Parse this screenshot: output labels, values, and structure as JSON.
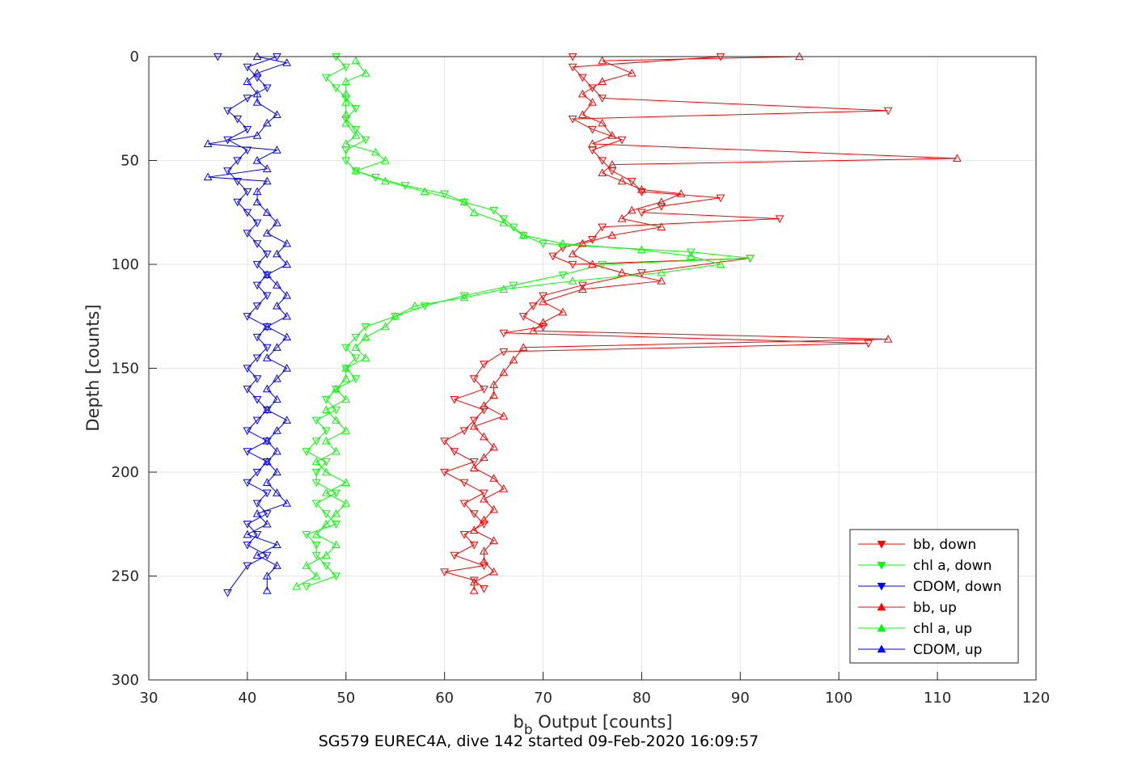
{
  "chart_data": {
    "type": "line",
    "title": "SG579 EUREC4A, dive 142 started 09-Feb-2020 16:09:57",
    "xlabel_main": "b",
    "xlabel_sub": "b",
    "xlabel_rest": " Output [counts]",
    "ylabel": "Depth [counts]",
    "xlim": [
      30,
      120
    ],
    "ylim": [
      0,
      300
    ],
    "y_reversed": true,
    "grid": true,
    "legend_position": "bottom-right",
    "xticks": [
      "30",
      "40",
      "50",
      "60",
      "70",
      "80",
      "90",
      "100",
      "110",
      "120"
    ],
    "yticks": [
      "0",
      "50",
      "100",
      "150",
      "200",
      "250",
      "300"
    ],
    "profiles": [
      {
        "name": "bb, down",
        "color": "#ff0000",
        "marker": "down",
        "points": [
          [
            73,
            0
          ],
          [
            88,
            0
          ],
          [
            73,
            5
          ],
          [
            74,
            10
          ],
          [
            75,
            15
          ],
          [
            76,
            20
          ],
          [
            105,
            26
          ],
          [
            73,
            30
          ],
          [
            75,
            35
          ],
          [
            78,
            40
          ],
          [
            75,
            45
          ],
          [
            76,
            50
          ],
          [
            77,
            55
          ],
          [
            79,
            60
          ],
          [
            80,
            65
          ],
          [
            88,
            68
          ],
          [
            82,
            72
          ],
          [
            80,
            75
          ],
          [
            94,
            78
          ],
          [
            76,
            82
          ],
          [
            75,
            88
          ],
          [
            72,
            92
          ],
          [
            71,
            96
          ],
          [
            73,
            100
          ],
          [
            91,
            97
          ],
          [
            80,
            104
          ],
          [
            74,
            110
          ],
          [
            70,
            115
          ],
          [
            69,
            120
          ],
          [
            68,
            125
          ],
          [
            70,
            130
          ],
          [
            66,
            133
          ],
          [
            103,
            138
          ],
          [
            66,
            142
          ],
          [
            64,
            148
          ],
          [
            63,
            155
          ],
          [
            64,
            160
          ],
          [
            61,
            165
          ],
          [
            64,
            170
          ],
          [
            63,
            175
          ],
          [
            62,
            180
          ],
          [
            60,
            185
          ],
          [
            61,
            190
          ],
          [
            63,
            195
          ],
          [
            60,
            200
          ],
          [
            62,
            205
          ],
          [
            64,
            210
          ],
          [
            62,
            215
          ],
          [
            63,
            220
          ],
          [
            64,
            225
          ],
          [
            62,
            230
          ],
          [
            63,
            235
          ],
          [
            61,
            240
          ],
          [
            64,
            245
          ],
          [
            60,
            248
          ],
          [
            63,
            252
          ],
          [
            64,
            256
          ]
        ]
      },
      {
        "name": "chl a, down",
        "color": "#00ff00",
        "marker": "down",
        "points": [
          [
            49,
            0
          ],
          [
            50,
            5
          ],
          [
            48,
            10
          ],
          [
            49,
            15
          ],
          [
            50,
            20
          ],
          [
            51,
            25
          ],
          [
            50,
            30
          ],
          [
            51,
            35
          ],
          [
            52,
            40
          ],
          [
            50,
            45
          ],
          [
            50,
            50
          ],
          [
            51,
            55
          ],
          [
            53,
            58
          ],
          [
            56,
            62
          ],
          [
            60,
            66
          ],
          [
            62,
            70
          ],
          [
            65,
            74
          ],
          [
            66,
            78
          ],
          [
            67,
            82
          ],
          [
            68,
            86
          ],
          [
            70,
            90
          ],
          [
            85,
            94
          ],
          [
            91,
            97
          ],
          [
            76,
            100
          ],
          [
            72,
            105
          ],
          [
            67,
            110
          ],
          [
            62,
            115
          ],
          [
            58,
            120
          ],
          [
            55,
            125
          ],
          [
            52,
            130
          ],
          [
            51,
            135
          ],
          [
            50,
            140
          ],
          [
            51,
            145
          ],
          [
            50,
            150
          ],
          [
            51,
            155
          ],
          [
            49,
            160
          ],
          [
            48,
            165
          ],
          [
            49,
            170
          ],
          [
            47,
            175
          ],
          [
            48,
            180
          ],
          [
            47,
            185
          ],
          [
            46,
            190
          ],
          [
            48,
            195
          ],
          [
            47,
            200
          ],
          [
            47,
            205
          ],
          [
            49,
            210
          ],
          [
            47,
            215
          ],
          [
            48,
            220
          ],
          [
            49,
            225
          ],
          [
            46,
            230
          ],
          [
            47,
            235
          ],
          [
            47,
            240
          ],
          [
            48,
            245
          ],
          [
            49,
            250
          ],
          [
            46,
            255
          ]
        ]
      },
      {
        "name": "CDOM, down",
        "color": "#0000ff",
        "marker": "down",
        "points": [
          [
            37,
            0
          ],
          [
            43,
            0
          ],
          [
            40,
            5
          ],
          [
            41,
            10
          ],
          [
            42,
            15
          ],
          [
            40,
            20
          ],
          [
            38,
            26
          ],
          [
            39,
            30
          ],
          [
            40,
            35
          ],
          [
            38,
            40
          ],
          [
            40,
            45
          ],
          [
            39,
            50
          ],
          [
            38,
            55
          ],
          [
            39,
            60
          ],
          [
            40,
            65
          ],
          [
            39,
            70
          ],
          [
            40,
            75
          ],
          [
            41,
            80
          ],
          [
            40,
            85
          ],
          [
            41,
            90
          ],
          [
            42,
            95
          ],
          [
            41,
            100
          ],
          [
            42,
            105
          ],
          [
            41,
            110
          ],
          [
            42,
            115
          ],
          [
            41,
            120
          ],
          [
            40,
            125
          ],
          [
            42,
            130
          ],
          [
            41,
            135
          ],
          [
            42,
            140
          ],
          [
            41,
            145
          ],
          [
            40,
            150
          ],
          [
            41,
            155
          ],
          [
            40,
            160
          ],
          [
            41,
            165
          ],
          [
            42,
            170
          ],
          [
            41,
            175
          ],
          [
            40,
            180
          ],
          [
            42,
            185
          ],
          [
            40,
            190
          ],
          [
            42,
            195
          ],
          [
            41,
            200
          ],
          [
            40,
            205
          ],
          [
            42,
            210
          ],
          [
            41,
            215
          ],
          [
            42,
            220
          ],
          [
            40,
            225
          ],
          [
            41,
            230
          ],
          [
            40,
            235
          ],
          [
            42,
            240
          ],
          [
            40,
            245
          ],
          [
            38,
            258
          ]
        ]
      },
      {
        "name": "bb, up",
        "color": "#ff0000",
        "marker": "up",
        "points": [
          [
            96,
            0
          ],
          [
            76,
            2
          ],
          [
            79,
            8
          ],
          [
            76,
            12
          ],
          [
            74,
            18
          ],
          [
            75,
            22
          ],
          [
            74,
            28
          ],
          [
            76,
            32
          ],
          [
            77,
            38
          ],
          [
            75,
            42
          ],
          [
            112,
            49
          ],
          [
            77,
            52
          ],
          [
            76,
            56
          ],
          [
            78,
            60
          ],
          [
            80,
            64
          ],
          [
            84,
            66
          ],
          [
            82,
            70
          ],
          [
            79,
            74
          ],
          [
            78,
            78
          ],
          [
            82,
            82
          ],
          [
            77,
            86
          ],
          [
            74,
            90
          ],
          [
            73,
            95
          ],
          [
            75,
            100
          ],
          [
            78,
            104
          ],
          [
            82,
            108
          ],
          [
            74,
            112
          ],
          [
            70,
            118
          ],
          [
            72,
            123
          ],
          [
            70,
            128
          ],
          [
            69,
            132
          ],
          [
            105,
            136
          ],
          [
            68,
            140
          ],
          [
            67,
            146
          ],
          [
            66,
            152
          ],
          [
            65,
            158
          ],
          [
            65,
            163
          ],
          [
            64,
            168
          ],
          [
            66,
            173
          ],
          [
            63,
            178
          ],
          [
            64,
            183
          ],
          [
            65,
            188
          ],
          [
            64,
            193
          ],
          [
            63,
            198
          ],
          [
            65,
            203
          ],
          [
            66,
            208
          ],
          [
            64,
            213
          ],
          [
            65,
            218
          ],
          [
            64,
            223
          ],
          [
            63,
            228
          ],
          [
            65,
            233
          ],
          [
            64,
            238
          ],
          [
            64,
            243
          ],
          [
            65,
            248
          ],
          [
            63,
            253
          ],
          [
            63,
            257
          ]
        ]
      },
      {
        "name": "chl a, up",
        "color": "#00ff00",
        "marker": "up",
        "points": [
          [
            51,
            2
          ],
          [
            52,
            8
          ],
          [
            50,
            12
          ],
          [
            50,
            18
          ],
          [
            50,
            22
          ],
          [
            50,
            28
          ],
          [
            50,
            32
          ],
          [
            51,
            38
          ],
          [
            50,
            42
          ],
          [
            53,
            46
          ],
          [
            54,
            50
          ],
          [
            51,
            55
          ],
          [
            54,
            60
          ],
          [
            58,
            65
          ],
          [
            62,
            70
          ],
          [
            63,
            75
          ],
          [
            66,
            80
          ],
          [
            68,
            86
          ],
          [
            72,
            90
          ],
          [
            80,
            93
          ],
          [
            85,
            96
          ],
          [
            88,
            100
          ],
          [
            82,
            104
          ],
          [
            73,
            108
          ],
          [
            66,
            112
          ],
          [
            62,
            116
          ],
          [
            57,
            120
          ],
          [
            55,
            125
          ],
          [
            54,
            130
          ],
          [
            52,
            135
          ],
          [
            51,
            140
          ],
          [
            52,
            145
          ],
          [
            50,
            150
          ],
          [
            50,
            155
          ],
          [
            49,
            160
          ],
          [
            50,
            165
          ],
          [
            48,
            170
          ],
          [
            49,
            175
          ],
          [
            50,
            180
          ],
          [
            48,
            185
          ],
          [
            49,
            190
          ],
          [
            47,
            195
          ],
          [
            48,
            200
          ],
          [
            50,
            205
          ],
          [
            48,
            210
          ],
          [
            50,
            215
          ],
          [
            49,
            220
          ],
          [
            48,
            225
          ],
          [
            47,
            230
          ],
          [
            49,
            235
          ],
          [
            48,
            240
          ],
          [
            46,
            245
          ],
          [
            47,
            250
          ],
          [
            45,
            255
          ]
        ]
      },
      {
        "name": "CDOM, up",
        "color": "#0000ff",
        "marker": "up",
        "points": [
          [
            41,
            0
          ],
          [
            44,
            3
          ],
          [
            41,
            8
          ],
          [
            40,
            12
          ],
          [
            41,
            18
          ],
          [
            41,
            22
          ],
          [
            43,
            28
          ],
          [
            42,
            32
          ],
          [
            41,
            38
          ],
          [
            36,
            42
          ],
          [
            43,
            45
          ],
          [
            41,
            50
          ],
          [
            42,
            54
          ],
          [
            36,
            58
          ],
          [
            42,
            60
          ],
          [
            41,
            65
          ],
          [
            41,
            70
          ],
          [
            42,
            75
          ],
          [
            43,
            80
          ],
          [
            42,
            85
          ],
          [
            44,
            90
          ],
          [
            43,
            95
          ],
          [
            44,
            100
          ],
          [
            42,
            105
          ],
          [
            43,
            110
          ],
          [
            44,
            115
          ],
          [
            43,
            120
          ],
          [
            44,
            125
          ],
          [
            42,
            130
          ],
          [
            44,
            135
          ],
          [
            43,
            140
          ],
          [
            42,
            145
          ],
          [
            44,
            150
          ],
          [
            43,
            155
          ],
          [
            42,
            160
          ],
          [
            43,
            165
          ],
          [
            42,
            170
          ],
          [
            44,
            175
          ],
          [
            43,
            180
          ],
          [
            42,
            185
          ],
          [
            43,
            190
          ],
          [
            42,
            195
          ],
          [
            43,
            200
          ],
          [
            42,
            205
          ],
          [
            43,
            210
          ],
          [
            44,
            215
          ],
          [
            41,
            220
          ],
          [
            42,
            225
          ],
          [
            40,
            230
          ],
          [
            43,
            235
          ],
          [
            41,
            240
          ],
          [
            43,
            245
          ],
          [
            42,
            250
          ],
          [
            42,
            257
          ]
        ]
      }
    ]
  }
}
